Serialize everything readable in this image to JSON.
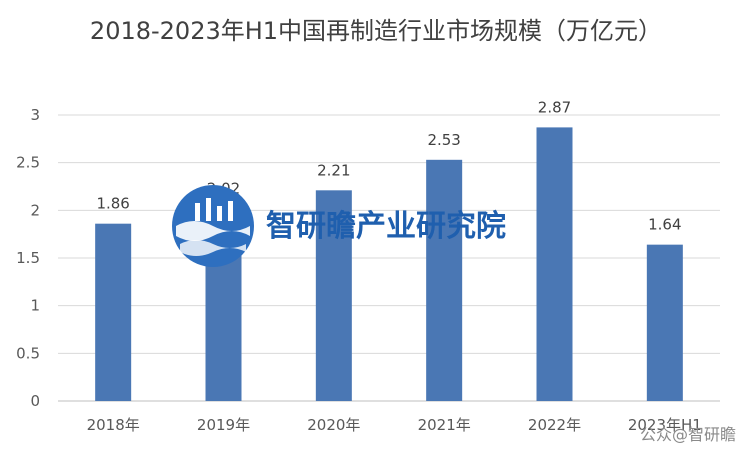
{
  "chart_data": {
    "type": "bar",
    "title": "2018-2023年H1中国再制造行业市场规模（万亿元）",
    "categories": [
      "2018年",
      "2019年",
      "2020年",
      "2021年",
      "2022年",
      "2023年H1"
    ],
    "values": [
      1.86,
      2.02,
      2.21,
      2.53,
      2.87,
      1.64
    ],
    "data_labels": [
      "1.86",
      "2.02",
      "2.21",
      "2.53",
      "2.87",
      "1.64"
    ],
    "yticks": [
      "0",
      "0.5",
      "1",
      "1.5",
      "2",
      "2.5",
      "3"
    ],
    "ylim": [
      0,
      3
    ],
    "xlabel": "",
    "ylabel": "",
    "grid": true,
    "bar_color": "#4a77b4",
    "grid_color": "#d9d9d9"
  },
  "watermark": {
    "text": "智研瞻产业研究院",
    "corner_text": "公众@智研瞻",
    "color": "#1f5fae"
  }
}
